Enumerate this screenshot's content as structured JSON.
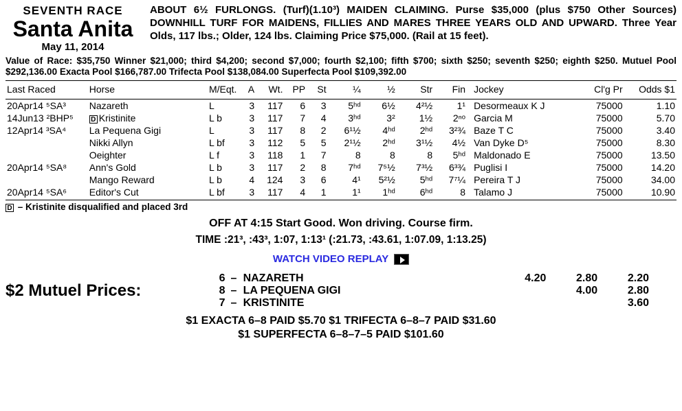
{
  "header": {
    "race_number": "SEVENTH RACE",
    "track": "Santa Anita",
    "date": "May 11, 2014",
    "conditions": "ABOUT 6½ FURLONGS. (Turf)(1.10³) MAIDEN CLAIMING. Purse $35,000 (plus $750 Other Sources) DOWNHILL TURF FOR MAIDENS, FILLIES AND MARES THREE YEARS OLD AND UPWARD. Three Year Olds, 117 lbs.; Older, 124 lbs. Claiming Price $75,000. (Rail at 15 feet)."
  },
  "value_line": "Value of Race: $35,750 Winner $21,000; third $4,200; second $7,000; fourth $2,100; fifth $700; sixth $250; seventh $250; eighth $250. Mutuel Pool $292,136.00 Exacta Pool $166,787.00 Trifecta Pool $138,084.00 Superfecta Pool $109,392.00",
  "columns": {
    "last_raced": "Last Raced",
    "horse": "Horse",
    "meqt": "M/Eqt.",
    "a": "A",
    "wt": "Wt.",
    "pp": "PP",
    "st": "St",
    "q1": "¼",
    "q2": "½",
    "str": "Str",
    "fin": "Fin",
    "jockey": "Jockey",
    "clg": "Cl'g Pr",
    "odds": "Odds $1"
  },
  "rows": [
    {
      "last": "20Apr14 ⁵SA³",
      "dq": false,
      "horse": "Nazareth",
      "meqt": "L",
      "a": "3",
      "wt": "117",
      "pp": "6",
      "st": "3",
      "q1": "5ʰᵈ",
      "q2": "6½",
      "str": "4²½",
      "fin": "1¹",
      "jockey": "Desormeaux K J",
      "clg": "75000",
      "odds": "1.10"
    },
    {
      "last": "14Jun13 ²BHP⁵",
      "dq": true,
      "horse": "Kristinite",
      "meqt": "L b",
      "a": "3",
      "wt": "117",
      "pp": "7",
      "st": "4",
      "q1": "3ʰᵈ",
      "q2": "3²",
      "str": "1½",
      "fin": "2ⁿᵒ",
      "jockey": "Garcia M",
      "clg": "75000",
      "odds": "5.70"
    },
    {
      "last": "12Apr14 ³SA⁴",
      "dq": false,
      "horse": "La Pequena Gigi",
      "meqt": "L",
      "a": "3",
      "wt": "117",
      "pp": "8",
      "st": "2",
      "q1": "6¹½",
      "q2": "4ʰᵈ",
      "str": "2ʰᵈ",
      "fin": "3²¾",
      "jockey": "Baze T C",
      "clg": "75000",
      "odds": "3.40"
    },
    {
      "last": "",
      "dq": false,
      "horse": "Nikki Allyn",
      "meqt": "L bf",
      "a": "3",
      "wt": "112",
      "pp": "5",
      "st": "5",
      "q1": "2¹½",
      "q2": "2ʰᵈ",
      "str": "3¹½",
      "fin": "4½",
      "jockey": "Van Dyke D⁵",
      "clg": "75000",
      "odds": "8.30"
    },
    {
      "last": "",
      "dq": false,
      "horse": "Oeighter",
      "meqt": "L f",
      "a": "3",
      "wt": "118",
      "pp": "1",
      "st": "7",
      "q1": "8",
      "q2": "8",
      "str": "8",
      "fin": "5ʰᵈ",
      "jockey": "Maldonado E",
      "clg": "75000",
      "odds": "13.50"
    },
    {
      "last": "20Apr14 ⁵SA⁸",
      "dq": false,
      "horse": "Ann's Gold",
      "meqt": "L b",
      "a": "3",
      "wt": "117",
      "pp": "2",
      "st": "8",
      "q1": "7ʰᵈ",
      "q2": "7⁵½",
      "str": "7³½",
      "fin": "6³¾",
      "jockey": "Puglisi I",
      "clg": "75000",
      "odds": "14.20"
    },
    {
      "last": "",
      "dq": false,
      "horse": "Mango Reward",
      "meqt": "L b",
      "a": "4",
      "wt": "124",
      "pp": "3",
      "st": "6",
      "q1": "4¹",
      "q2": "5²½",
      "str": "5ʰᵈ",
      "fin": "7⁷¼",
      "jockey": "Pereira T J",
      "clg": "75000",
      "odds": "34.00"
    },
    {
      "last": "20Apr14 ⁵SA⁶",
      "dq": false,
      "horse": "Editor's Cut",
      "meqt": "L bf",
      "a": "3",
      "wt": "117",
      "pp": "4",
      "st": "1",
      "q1": "1¹",
      "q2": "1ʰᵈ",
      "str": "6ʰᵈ",
      "fin": "8",
      "jockey": "Talamo J",
      "clg": "75000",
      "odds": "10.90"
    }
  ],
  "dq_note": " – Kristinite disqualified and placed 3rd",
  "dq_letter": "D",
  "off_line": "OFF AT 4:15 Start Good. Won driving. Course firm.",
  "time_line": "TIME :21³, :43³, 1:07, 1:13¹ (:21.73, :43.61, 1:07.09, 1:13.25)",
  "replay_text": "WATCH VIDEO REPLAY",
  "mutuel_title": "$2 Mutuel Prices:",
  "mutuel_rows": [
    {
      "num": "6",
      "name": "NAZARETH",
      "win": "4.20",
      "place": "2.80",
      "show": "2.20"
    },
    {
      "num": "8",
      "name": "LA PEQUENA GIGI",
      "win": "",
      "place": "4.00",
      "show": "2.80"
    },
    {
      "num": "7",
      "name": "KRISTINITE",
      "win": "",
      "place": "",
      "show": "3.60"
    }
  ],
  "exotics": [
    "$1 EXACTA 6–8 PAID $5.70 $1 TRIFECTA 6–8–7 PAID $31.60",
    "$1 SUPERFECTA 6–8–7–5 PAID $101.60"
  ],
  "sep": "–"
}
